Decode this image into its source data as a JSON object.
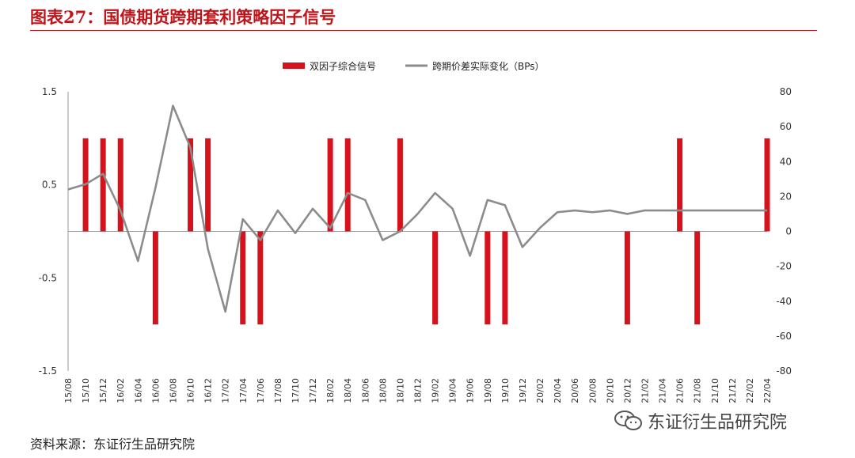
{
  "header": {
    "title": "图表27：国债期货跨期套利策略因子信号"
  },
  "footer": {
    "source": "资料来源：东证衍生品研究院",
    "watermark": "东证衍生品研究院"
  },
  "colors": {
    "accent": "#c0141b",
    "bar": "#d6121c",
    "line": "#8c8c8c"
  },
  "chart_data": {
    "type": "bar",
    "title": "",
    "xlabel": "",
    "categories": [
      "15/08",
      "15/10",
      "15/12",
      "16/02",
      "16/04",
      "16/06",
      "16/08",
      "16/10",
      "16/12",
      "17/02",
      "17/04",
      "17/06",
      "17/08",
      "17/10",
      "17/12",
      "18/02",
      "18/04",
      "18/06",
      "18/08",
      "18/10",
      "18/12",
      "19/02",
      "19/04",
      "19/06",
      "19/08",
      "19/10",
      "19/12",
      "20/02",
      "20/04",
      "20/06",
      "20/08",
      "20/10",
      "20/12",
      "21/02",
      "21/04",
      "21/06",
      "21/08",
      "21/10",
      "21/12",
      "22/02",
      "22/04"
    ],
    "series": [
      {
        "name": "双因子综合信号",
        "type": "bar",
        "axis": "left",
        "values": [
          0,
          1,
          1,
          1,
          0,
          -1,
          0,
          1,
          1,
          0,
          -1,
          -1,
          0,
          0,
          0,
          1,
          1,
          0,
          0,
          1,
          0,
          -1,
          0,
          0,
          -1,
          -1,
          0,
          0,
          0,
          0,
          0,
          0,
          -1,
          0,
          0,
          1,
          -1,
          0,
          0,
          0,
          1
        ]
      },
      {
        "name": "跨期价差实际变化（BPs）",
        "type": "line",
        "axis": "right",
        "values": [
          24,
          27,
          33,
          12,
          -17,
          25,
          72,
          48,
          -10,
          -46,
          7,
          -5,
          12,
          -1,
          13,
          2,
          22,
          18,
          -5,
          0,
          10,
          22,
          13,
          -14,
          18,
          15,
          -9,
          2,
          11,
          12,
          11,
          12,
          10,
          12,
          12,
          12,
          12,
          12,
          12,
          12,
          12
        ]
      }
    ],
    "left_axis": {
      "ylim": [
        -1.5,
        1.5
      ],
      "ticks": [
        "1.5",
        "0.5",
        "-0.5",
        "-1.5"
      ]
    },
    "right_axis": {
      "ylim": [
        -80,
        80
      ],
      "ticks": [
        "80",
        "60",
        "40",
        "20",
        "0",
        "-20",
        "-40",
        "-60",
        "-80"
      ]
    },
    "legend": "top-center",
    "grid": false
  }
}
